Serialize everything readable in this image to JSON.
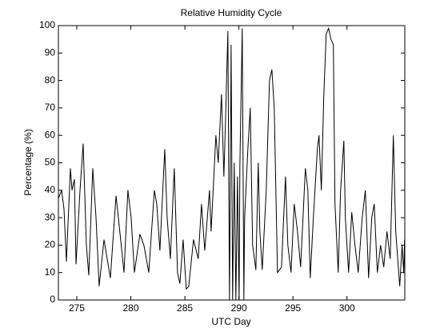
{
  "chart_data": {
    "type": "line",
    "title": "Relative Humidity Cycle",
    "x_label": "UTC Day",
    "y_label": "Percentage (%)",
    "x": [
      273.3,
      273.6,
      273.82,
      274.04,
      274.41,
      274.56,
      274.78,
      274.93,
      275.3,
      275.59,
      275.89,
      276.11,
      276.48,
      276.78,
      277.07,
      277.52,
      278.11,
      278.63,
      278.85,
      279.37,
      279.73,
      280.03,
      280.33,
      280.84,
      281.21,
      281.66,
      282.18,
      282.4,
      282.69,
      283.14,
      283.36,
      283.66,
      284.02,
      284.32,
      284.54,
      284.84,
      285.13,
      285.36,
      285.8,
      286.24,
      286.54,
      286.84,
      287.28,
      287.43,
      287.87,
      288.09,
      288.39,
      288.61,
      288.76,
      288.98,
      289.13,
      289.28,
      289.42,
      289.57,
      289.72,
      289.87,
      290.02,
      290.09,
      290.31,
      290.46,
      290.53,
      290.83,
      291.05,
      291.27,
      291.57,
      291.79,
      291.94,
      292.16,
      292.53,
      292.83,
      293.05,
      293.27,
      293.57,
      293.94,
      294.31,
      294.53,
      294.82,
      295.12,
      295.42,
      295.71,
      296.15,
      296.38,
      296.6,
      296.89,
      297.26,
      297.41,
      297.63,
      297.86,
      298.08,
      298.3,
      298.52,
      298.74,
      298.89,
      299.19,
      299.41,
      299.71,
      299.85,
      300.15,
      300.44,
      300.74,
      301.04,
      301.41,
      301.7,
      302,
      302.29,
      302.52,
      302.81,
      303.11,
      303.4,
      303.7,
      304,
      304.29,
      304.51,
      304.88,
      305.1,
      305.25,
      305.33
    ],
    "values": [
      37,
      40,
      33,
      14,
      48,
      40,
      44,
      13,
      40,
      57,
      20,
      9,
      48,
      30,
      5,
      22,
      8,
      38,
      30,
      10,
      40,
      30,
      10,
      24,
      20,
      10,
      40,
      35,
      18,
      55,
      30,
      15,
      48,
      10,
      6,
      22,
      4,
      5,
      22,
      15,
      35,
      18,
      40,
      25,
      60,
      50,
      75,
      45,
      65,
      98,
      0,
      93,
      0,
      50,
      0,
      45,
      0,
      49,
      99,
      0,
      30,
      55,
      70,
      20,
      11,
      50,
      25,
      11,
      40,
      80,
      84,
      70,
      10,
      12,
      45,
      20,
      10,
      35,
      25,
      12,
      48,
      40,
      8,
      30,
      55,
      60,
      40,
      75,
      97,
      99,
      95,
      93,
      35,
      10,
      40,
      58,
      30,
      10,
      32,
      20,
      10,
      30,
      40,
      8,
      30,
      35,
      10,
      20,
      12,
      25,
      15,
      60,
      25,
      5,
      20,
      10,
      22
    ],
    "color": "#000000",
    "xlim": [
      273.3,
      305.35
    ],
    "ylim": [
      0,
      100
    ],
    "xticks": [
      275,
      280,
      285,
      290,
      295,
      300
    ],
    "yticks": [
      0,
      10,
      20,
      30,
      40,
      50,
      60,
      70,
      80,
      90,
      100
    ]
  }
}
